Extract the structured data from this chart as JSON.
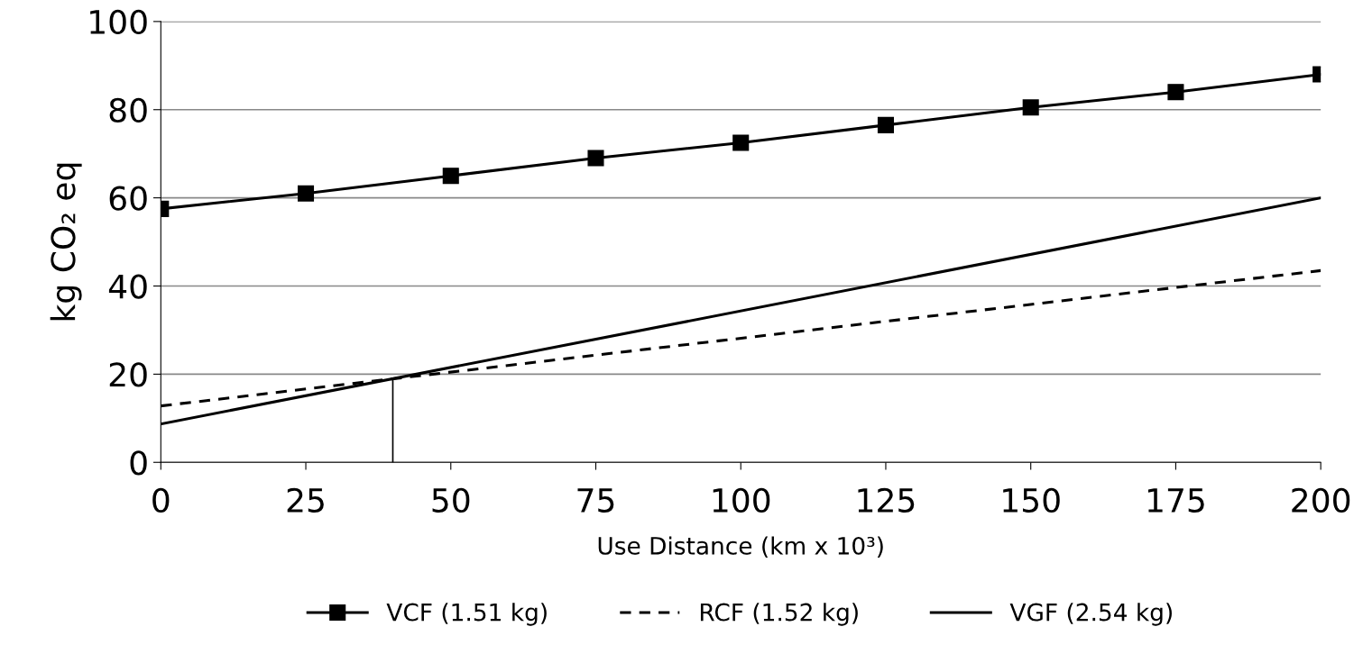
{
  "chart_data": {
    "type": "line",
    "xlabel": "Use Distance (km x 10³)",
    "ylabel": "kg CO₂ eq",
    "x": [
      0,
      25,
      50,
      75,
      100,
      125,
      150,
      175,
      200
    ],
    "series": [
      {
        "name": "VCF (1.51 kg)",
        "color": "#000000",
        "marker": "square",
        "line_style": "solid",
        "values": [
          57.5,
          61,
          65,
          69,
          72.5,
          76.5,
          80.5,
          84,
          88
        ]
      },
      {
        "name": "RCF (1.52 kg)",
        "color": "#000000",
        "marker": "none",
        "line_style": "dashed",
        "x": [
          0,
          200
        ],
        "values": [
          12.8,
          43.5
        ]
      },
      {
        "name": "VGF (2.54 kg)",
        "color": "#000000",
        "marker": "none",
        "line_style": "solid",
        "x": [
          0,
          200
        ],
        "values": [
          8.7,
          60
        ]
      },
      {
        "color": "#000000",
        "marker": "none",
        "line_style": "solid",
        "x": [
          40,
          40
        ],
        "values": [
          0,
          19
        ]
      }
    ],
    "xlim": [
      0,
      200
    ],
    "xticks": [
      0,
      25,
      50,
      75,
      100,
      125,
      150,
      175,
      200
    ],
    "ylim": [
      0,
      100
    ],
    "yticks": [
      0,
      20,
      40,
      60,
      80,
      100
    ],
    "grid": "y",
    "legend": "bottom"
  }
}
